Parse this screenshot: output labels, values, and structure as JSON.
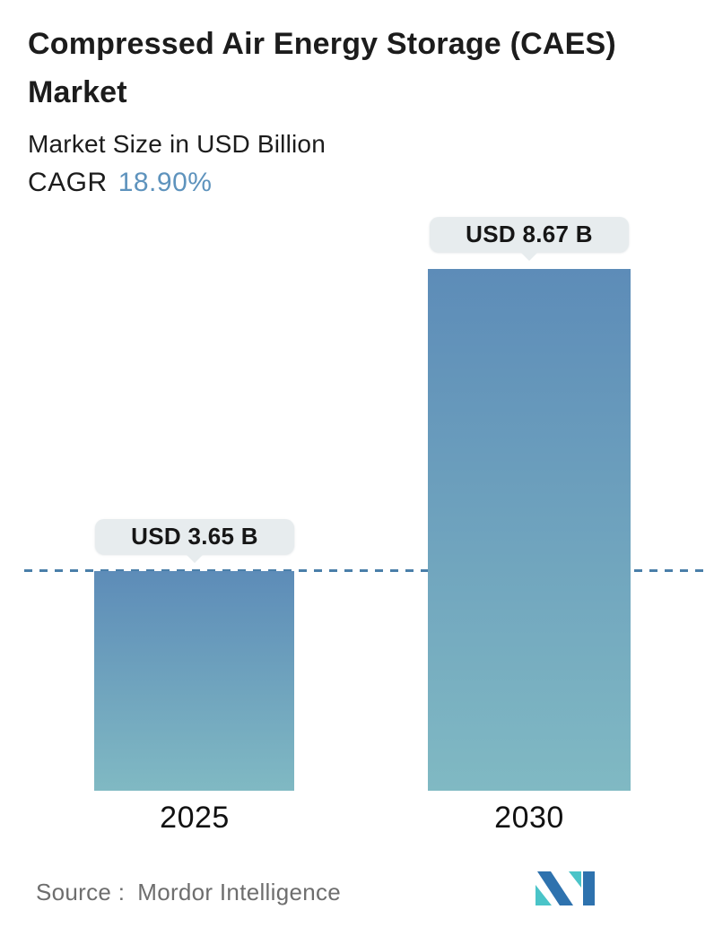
{
  "header": {
    "title": "Compressed Air Energy Storage (CAES) Market",
    "subtitle": "Market Size in USD Billion",
    "cagr_label": "CAGR",
    "cagr_value": "18.90%"
  },
  "footer": {
    "source_label": "Source :",
    "source_value": "Mordor Intelligence",
    "logo": "mordor-intelligence-logo"
  },
  "colors": {
    "cagr_value_text": "#5e93bd",
    "bar_gradient_top": "#5d8cb8",
    "bar_gradient_bottom": "#80b9c3",
    "dashed_reference_line": "#4a7fa9",
    "callout_background": "#e7ecee",
    "callout_text": "#161616",
    "title_text": "#1c1c1c",
    "source_text": "#6e6e6e",
    "logo_blue": "#2e72ae",
    "logo_teal": "#4ac4c8"
  },
  "chart_data": {
    "type": "bar",
    "categories": [
      "2025",
      "2030"
    ],
    "values": [
      3.65,
      8.67
    ],
    "value_labels": [
      "USD 3.65 B",
      "USD 8.67 B"
    ],
    "unit": "USD Billion",
    "title": "Compressed Air Energy Storage (CAES) Market",
    "ylabel": "Market Size in USD Billion",
    "cagr_percent": 18.9,
    "ylim": [
      0,
      8.67
    ],
    "grid": false,
    "legend": "none",
    "reference_line": {
      "style": "dashed",
      "value": 3.65
    }
  }
}
